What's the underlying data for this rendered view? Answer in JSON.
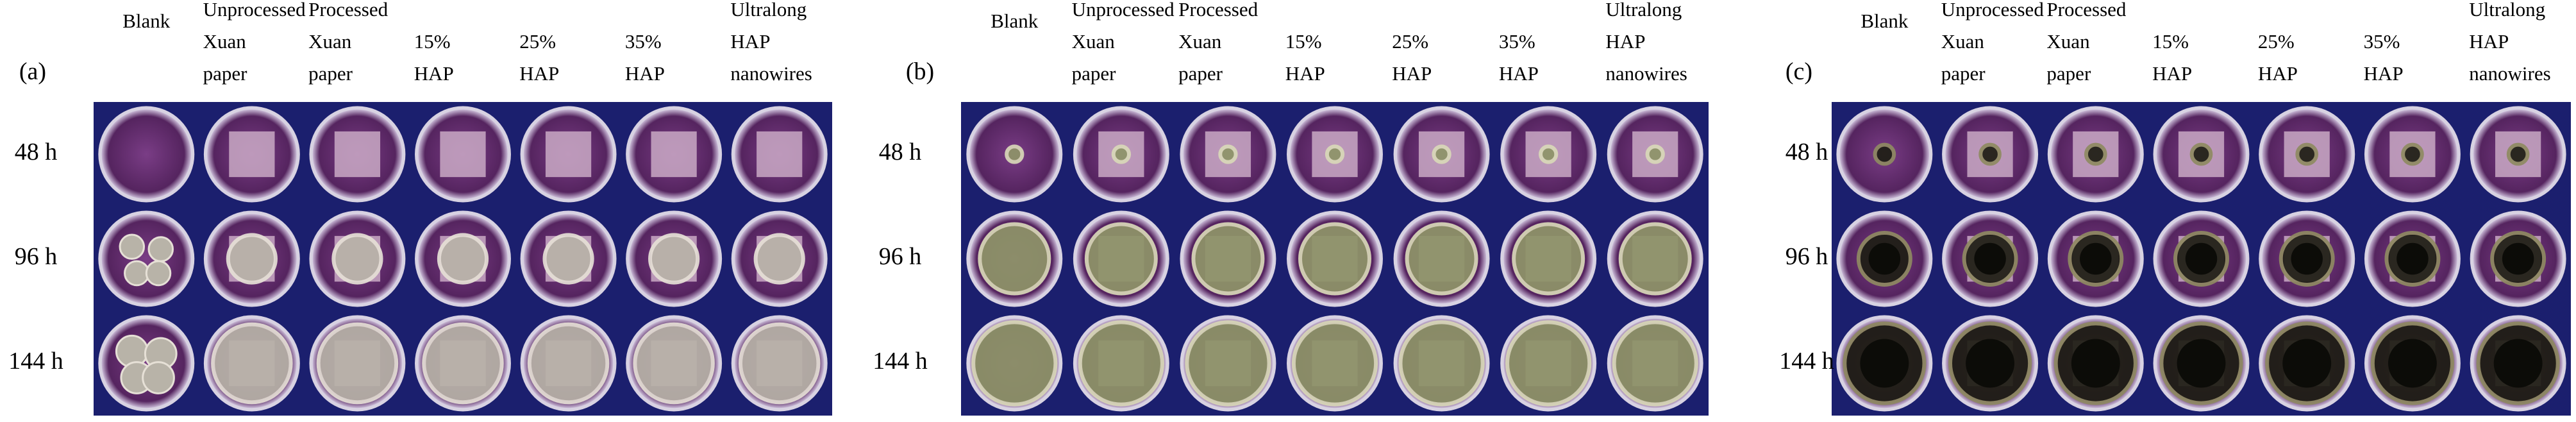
{
  "panels": [
    {
      "label": "(a)",
      "columns": [
        [
          "Blank"
        ],
        [
          "Unprocessed",
          "Xuan",
          "paper"
        ],
        [
          "Processed",
          "Xuan",
          "paper"
        ],
        [
          "15%",
          "HAP"
        ],
        [
          "25%",
          "HAP"
        ],
        [
          "35%",
          "HAP"
        ],
        [
          "Ultralong",
          "HAP",
          "nanowires"
        ]
      ],
      "rows": [
        "48 h",
        "96 h",
        "144 h"
      ]
    },
    {
      "label": "(b)",
      "columns": [
        [
          "Blank"
        ],
        [
          "Unprocessed",
          "Xuan",
          "paper"
        ],
        [
          "Processed",
          "Xuan",
          "paper"
        ],
        [
          "15%",
          "HAP"
        ],
        [
          "25%",
          "HAP"
        ],
        [
          "35%",
          "HAP"
        ],
        [
          "Ultralong",
          "HAP",
          "nanowires"
        ]
      ],
      "rows": [
        "48 h",
        "96 h",
        "144 h"
      ]
    },
    {
      "label": "(c)",
      "columns": [
        [
          "Blank"
        ],
        [
          "Unprocessed",
          "Xuan",
          "paper"
        ],
        [
          "Processed",
          "Xuan",
          "paper"
        ],
        [
          "15%",
          "HAP"
        ],
        [
          "25%",
          "HAP"
        ],
        [
          "35%",
          "HAP"
        ],
        [
          "Ultralong",
          "HAP",
          "nanowires"
        ]
      ],
      "rows": [
        "48 h",
        "96 h",
        "144 h"
      ]
    }
  ]
}
